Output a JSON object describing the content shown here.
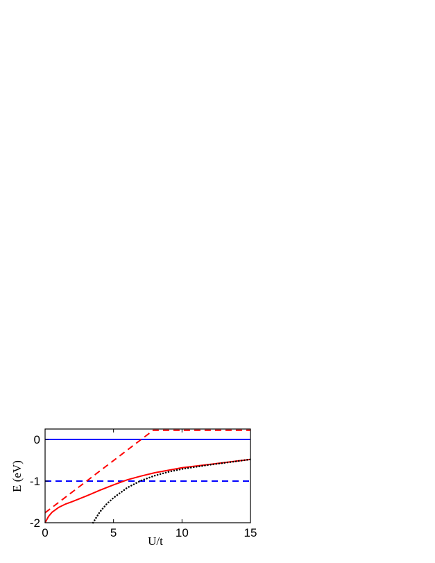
{
  "chart_data": {
    "type": "line",
    "title": "",
    "xlabel": "U/t",
    "ylabel": "E (eV)",
    "xlim": [
      0,
      15
    ],
    "ylim": [
      -2,
      0.25
    ],
    "xticks": [
      "0",
      "5",
      "10",
      "15"
    ],
    "yticks": [
      "0",
      "-1",
      "-2"
    ],
    "grid": false,
    "series": [
      {
        "color": "#0000ff",
        "style": "solid",
        "x": [
          0,
          15
        ],
        "y": [
          0,
          0
        ]
      },
      {
        "color": "#0000ff",
        "style": "dashed",
        "x": [
          0,
          15
        ],
        "y": [
          -1,
          -1
        ]
      },
      {
        "color": "#ff0000",
        "style": "dashed",
        "x": [
          0,
          7.9,
          15
        ],
        "y": [
          -1.76,
          0.22,
          0.22
        ]
      },
      {
        "color": "#ff0000",
        "style": "solid",
        "x": [
          0,
          0.25,
          0.5,
          1,
          1.5,
          2,
          3,
          4,
          5,
          6,
          7,
          8,
          10,
          12,
          15
        ],
        "y": [
          -2,
          -1.85,
          -1.75,
          -1.63,
          -1.55,
          -1.49,
          -1.36,
          -1.22,
          -1.09,
          -0.97,
          -0.88,
          -0.8,
          -0.68,
          -0.6,
          -0.48
        ]
      },
      {
        "color": "#000000",
        "style": "dotted",
        "x": [
          3.5,
          4,
          4.5,
          5,
          6,
          7,
          8,
          9,
          10,
          12,
          15
        ],
        "y": [
          -2,
          -1.74,
          -1.55,
          -1.4,
          -1.16,
          -0.99,
          -0.87,
          -0.78,
          -0.71,
          -0.61,
          -0.48
        ]
      }
    ]
  }
}
